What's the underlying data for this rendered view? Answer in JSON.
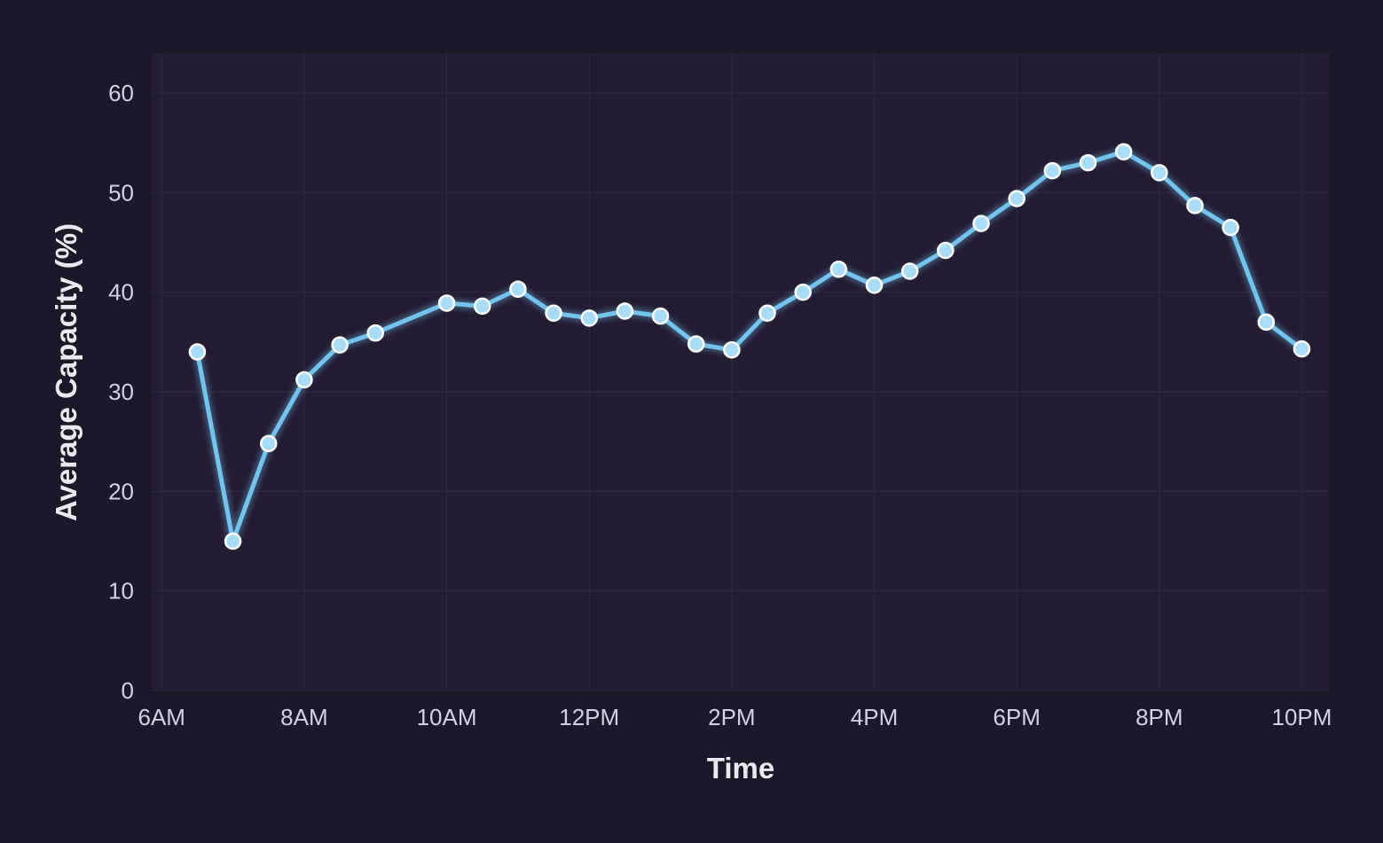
{
  "chart_data": {
    "type": "line",
    "xlabel": "Time",
    "ylabel": "Average Capacity (%)",
    "ylim": [
      0,
      64
    ],
    "xlim": [
      5.86,
      22.38
    ],
    "grid": true,
    "x_unit": "hour of day",
    "x_ticks": [
      {
        "value": 6,
        "label": "6AM"
      },
      {
        "value": 8,
        "label": "8AM"
      },
      {
        "value": 10,
        "label": "10AM"
      },
      {
        "value": 12,
        "label": "12PM"
      },
      {
        "value": 14,
        "label": "2PM"
      },
      {
        "value": 16,
        "label": "4PM"
      },
      {
        "value": 18,
        "label": "6PM"
      },
      {
        "value": 20,
        "label": "8PM"
      },
      {
        "value": 22,
        "label": "10PM"
      }
    ],
    "y_ticks": [
      0,
      10,
      20,
      30,
      40,
      50,
      60
    ],
    "series": [
      {
        "x": [
          6.5,
          7,
          7.5,
          8,
          8.5,
          9,
          10,
          10.5,
          11,
          11.5,
          12,
          12.5,
          13,
          13.5,
          14,
          14.5,
          15,
          15.5,
          16,
          16.5,
          17,
          17.5,
          18,
          18.5,
          19,
          19.5,
          20,
          20.5,
          21,
          21.5,
          22
        ],
        "values": [
          34.0,
          15.0,
          24.8,
          31.2,
          34.7,
          35.9,
          38.9,
          38.6,
          40.3,
          37.9,
          37.4,
          38.1,
          37.6,
          34.8,
          34.2,
          37.9,
          40.0,
          42.3,
          40.7,
          42.1,
          44.2,
          46.9,
          49.4,
          52.2,
          53.0,
          54.1,
          52.0,
          48.7,
          46.5,
          37.0,
          34.3
        ]
      }
    ],
    "colors": {
      "background": "#1b1827",
      "plot_area": "#231c33",
      "grid": "#2e2940",
      "line": "#73c3ee",
      "marker_fill": "#a9dcf6",
      "marker_edge": "#ffffff"
    }
  }
}
